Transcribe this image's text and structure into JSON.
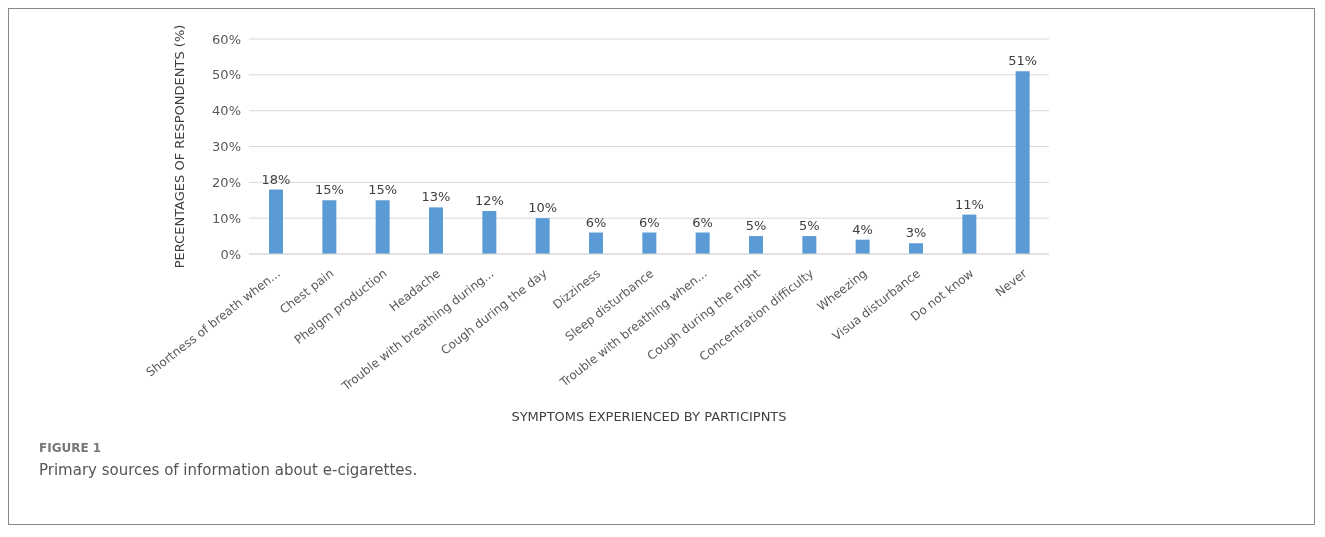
{
  "chart_data": {
    "type": "bar",
    "xlabel": "SYMPTOMS EXPERIENCED BY PARTICIPNTS",
    "ylabel": "PERCENTAGES OF RESPONDENTS (%)",
    "categories": [
      "Shortness of breath when...",
      "Chest pain",
      "Phelgm production",
      "Headache",
      "Trouble with breathing during...",
      "Cough during the day",
      "Dizziness",
      "Sleep disturbance",
      "Trouble with breathing when...",
      "Cough during the night",
      "Concentration difficulty",
      "Wheezing",
      "Visua disturbance",
      "Do not know",
      "Never"
    ],
    "values": [
      18,
      15,
      15,
      13,
      12,
      10,
      6,
      6,
      6,
      5,
      5,
      4,
      3,
      11,
      51
    ],
    "value_labels": [
      "18%",
      "15%",
      "15%",
      "13%",
      "12%",
      "10%",
      "6%",
      "6%",
      "6%",
      "5%",
      "5%",
      "4%",
      "3%",
      "11%",
      "51%"
    ],
    "color": "#5b9bd5",
    "ylim": [
      0,
      60
    ],
    "yticks": [
      {
        "value": 0,
        "label": "0%"
      },
      {
        "value": 10,
        "label": "10%"
      },
      {
        "value": 20,
        "label": "20%"
      },
      {
        "value": 30,
        "label": "30%"
      },
      {
        "value": 40,
        "label": "40%"
      },
      {
        "value": 50,
        "label": "50%"
      },
      {
        "value": 60,
        "label": "60%"
      }
    ],
    "grid": "y",
    "legend": false,
    "annotations": [
      "FIGURE 1",
      "Primary sources of information about e-cigarettes."
    ]
  }
}
